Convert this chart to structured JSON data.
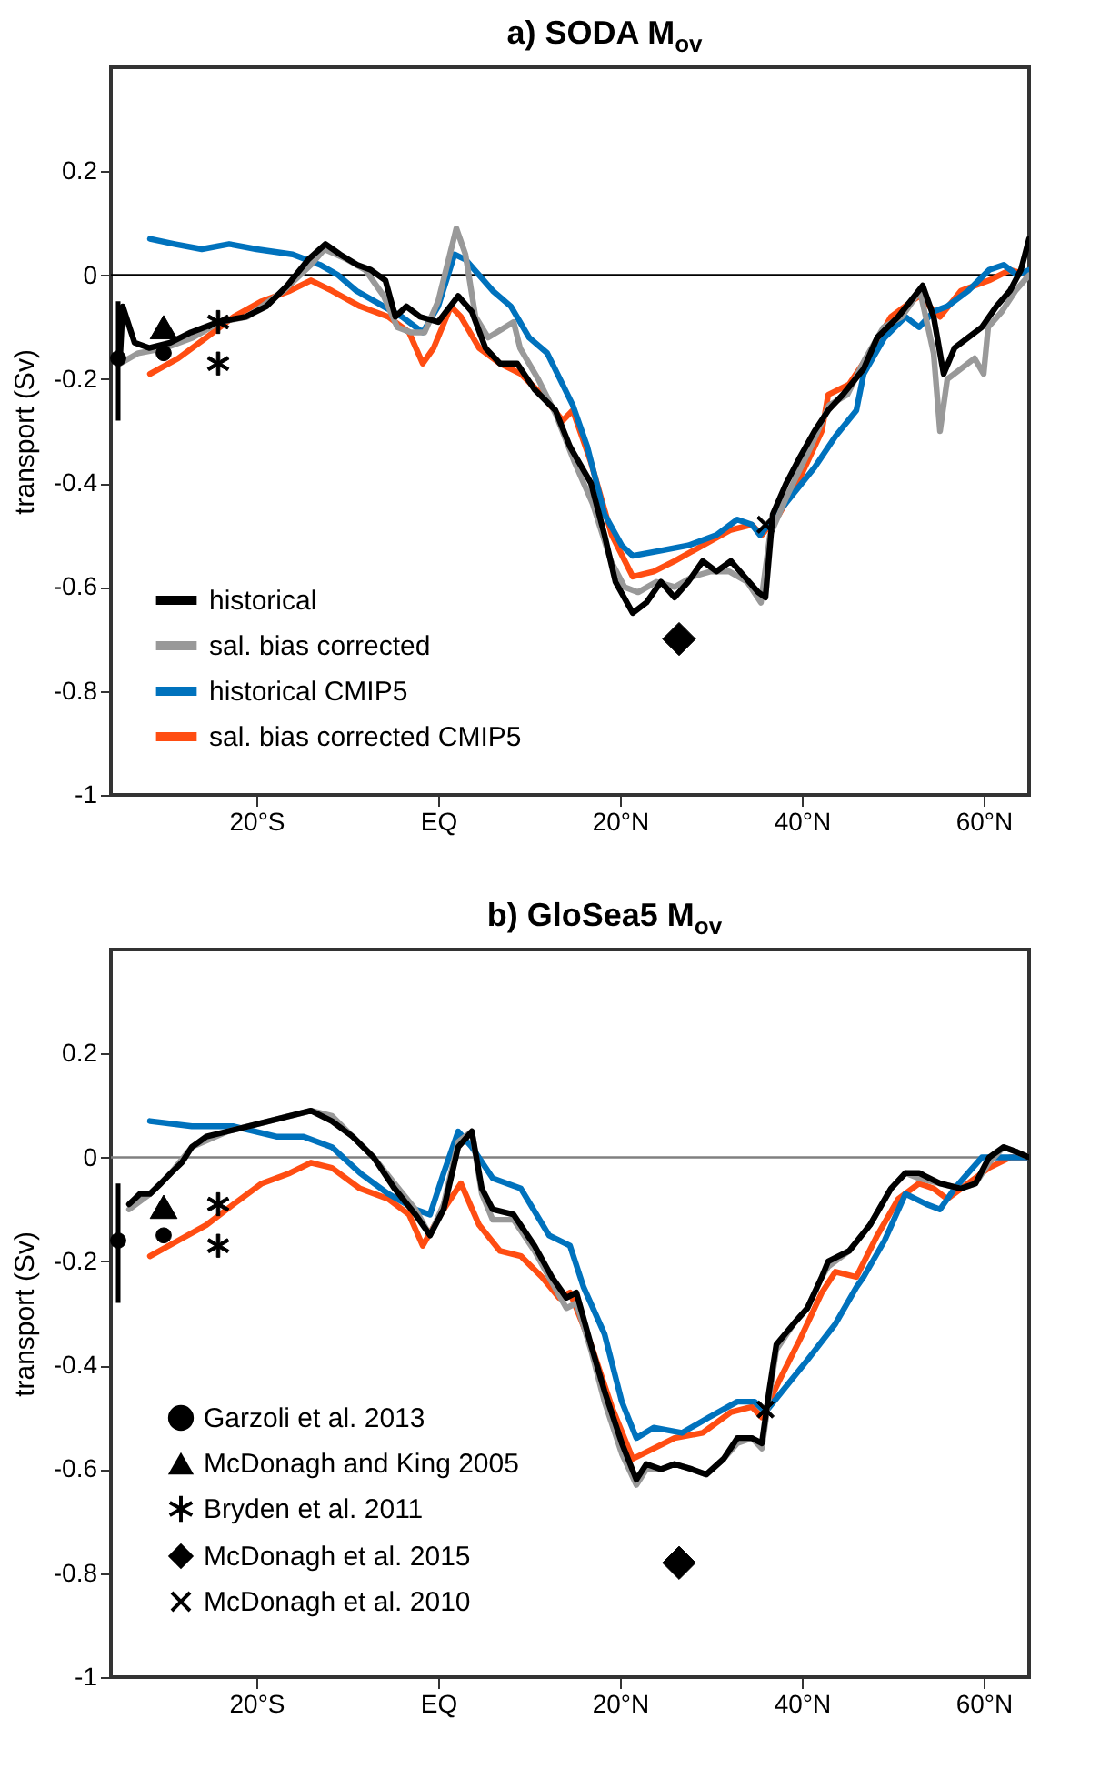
{
  "chart_data": [
    {
      "type": "line",
      "title": "a) SODA M$_{ov}$",
      "ylabel": "transport (Sv)",
      "xlim": [
        -36,
        65
      ],
      "xticks": [
        {
          "value": -20,
          "label": "20°S"
        },
        {
          "value": 0,
          "label": "EQ"
        },
        {
          "value": 20,
          "label": "20°N"
        },
        {
          "value": 40,
          "label": "40°N"
        },
        {
          "value": 60,
          "label": "60°N"
        }
      ],
      "ylim": [
        -1,
        0.4
      ],
      "yticks": [
        -1,
        -0.8,
        -0.6,
        -0.4,
        -0.2,
        0,
        0.2
      ],
      "ref_lines": [
        {
          "axis": "y",
          "value": 0,
          "color": "#000000"
        }
      ],
      "legend": "bottom left",
      "series": [
        {
          "name": "historical",
          "color": "#000000",
          "type": "line",
          "x": [
            -35.0,
            -34.7,
            -33.4,
            -31.8,
            -29.5,
            -27.2,
            -24.2,
            -21.2,
            -18.9,
            -16.6,
            -14.3,
            -12.4,
            -10.8,
            -8.9,
            -7.4,
            -5.8,
            -4.7,
            -3.5,
            -2.0,
            0,
            2.2,
            3.7,
            5.2,
            6.8,
            8.7,
            10.6,
            12.9,
            14.5,
            16.8,
            18.3,
            19.5,
            21.4,
            22.9,
            24.5,
            26.0,
            27.5,
            29.1,
            30.6,
            32.2,
            33.7,
            35.2,
            36.0,
            36.8,
            38.3,
            39.8,
            41.4,
            42.9,
            44.5,
            46.8,
            48.3,
            50.6,
            53.3,
            54.5,
            55.6,
            56.8,
            58.3,
            59.8,
            61.4,
            62.9,
            64.1,
            65
          ],
          "values": [
            -0.16,
            -0.06,
            -0.13,
            -0.14,
            -0.13,
            -0.11,
            -0.09,
            -0.08,
            -0.06,
            -0.02,
            0.03,
            0.06,
            0.04,
            0.02,
            0.01,
            -0.01,
            -0.08,
            -0.06,
            -0.08,
            -0.09,
            -0.04,
            -0.07,
            -0.14,
            -0.17,
            -0.17,
            -0.22,
            -0.26,
            -0.33,
            -0.4,
            -0.5,
            -0.59,
            -0.65,
            -0.63,
            -0.59,
            -0.62,
            -0.59,
            -0.55,
            -0.57,
            -0.55,
            -0.58,
            -0.61,
            -0.62,
            -0.46,
            -0.4,
            -0.35,
            -0.3,
            -0.26,
            -0.23,
            -0.18,
            -0.12,
            -0.08,
            -0.02,
            -0.08,
            -0.19,
            -0.14,
            -0.12,
            -0.1,
            -0.06,
            -0.03,
            0.01,
            0.07
          ]
        },
        {
          "name": "sal. bias corrected",
          "color": "#999999",
          "type": "line",
          "x": [
            -35,
            -33,
            -30,
            -27,
            -24,
            -21,
            -17,
            -14,
            -12.5,
            -10,
            -8,
            -6,
            -4.5,
            -3,
            -1.5,
            0,
            2,
            3,
            4.1,
            5.5,
            8.3,
            9,
            11,
            13,
            15,
            17,
            19,
            20.5,
            22,
            24,
            26,
            28,
            30,
            32,
            34,
            35.5,
            36.5,
            38.5,
            41,
            43,
            45,
            47,
            49,
            51,
            53,
            54.5,
            55.2,
            56,
            57.5,
            59,
            60,
            60.5,
            62,
            63.5,
            65
          ],
          "values": [
            -0.17,
            -0.15,
            -0.14,
            -0.12,
            -0.09,
            -0.08,
            -0.03,
            0.02,
            0.05,
            0.03,
            0.01,
            -0.04,
            -0.1,
            -0.11,
            -0.11,
            -0.05,
            0.09,
            0.04,
            -0.08,
            -0.12,
            -0.09,
            -0.14,
            -0.2,
            -0.27,
            -0.36,
            -0.44,
            -0.55,
            -0.6,
            -0.61,
            -0.59,
            -0.6,
            -0.58,
            -0.57,
            -0.57,
            -0.59,
            -0.63,
            -0.5,
            -0.42,
            -0.33,
            -0.25,
            -0.23,
            -0.16,
            -0.1,
            -0.08,
            -0.03,
            -0.15,
            -0.3,
            -0.2,
            -0.18,
            -0.16,
            -0.19,
            -0.1,
            -0.07,
            -0.03,
            0.0
          ]
        },
        {
          "name": "historical CMIP5",
          "color": "#0072bd",
          "type": "line",
          "x": [
            -31.7,
            -29,
            -26,
            -23,
            -20,
            -16,
            -13,
            -11,
            -9,
            -6,
            -4,
            -1.7,
            0,
            1.8,
            3,
            6,
            8,
            10,
            12,
            14.8,
            16.4,
            18.3,
            20.2,
            21.4,
            24.5,
            27.5,
            30.6,
            32.9,
            34.5,
            35.4,
            36.8,
            39.1,
            41.4,
            43.7,
            46,
            46.8,
            49.1,
            51.4,
            52.9,
            54.5,
            56,
            58.3,
            60.6,
            62.2,
            63.7,
            65
          ],
          "values": [
            0.07,
            0.06,
            0.05,
            0.06,
            0.05,
            0.04,
            0.02,
            0.0,
            -0.03,
            -0.06,
            -0.08,
            -0.11,
            -0.06,
            0.04,
            0.03,
            -0.03,
            -0.06,
            -0.12,
            -0.15,
            -0.25,
            -0.33,
            -0.46,
            -0.52,
            -0.54,
            -0.53,
            -0.52,
            -0.5,
            -0.47,
            -0.48,
            -0.5,
            -0.47,
            -0.42,
            -0.37,
            -0.31,
            -0.26,
            -0.19,
            -0.12,
            -0.08,
            -0.1,
            -0.07,
            -0.06,
            -0.03,
            0.01,
            0.02,
            0.0,
            0.01
          ]
        },
        {
          "name": "sal. bias corrected CMIP5",
          "color": "#ff4d12",
          "type": "line",
          "x": [
            -31.7,
            -28.6,
            -25.5,
            -22.5,
            -19.4,
            -16.3,
            -14,
            -11.7,
            -8.6,
            -5.5,
            -3.2,
            -1.7,
            -0.5,
            1.4,
            2.5,
            4.5,
            6.8,
            9.1,
            11.4,
            13.7,
            14.8,
            16.8,
            19.1,
            21.4,
            23.7,
            26,
            29.1,
            32.2,
            34.5,
            35.6,
            37.5,
            39.8,
            42.2,
            42.9,
            45.2,
            47.5,
            49.8,
            52.9,
            55.2,
            57.5,
            60.6,
            62.9,
            65
          ],
          "values": [
            -0.19,
            -0.16,
            -0.12,
            -0.08,
            -0.05,
            -0.03,
            -0.01,
            -0.03,
            -0.06,
            -0.08,
            -0.11,
            -0.17,
            -0.14,
            -0.06,
            -0.08,
            -0.14,
            -0.17,
            -0.19,
            -0.23,
            -0.28,
            -0.26,
            -0.36,
            -0.5,
            -0.58,
            -0.57,
            -0.55,
            -0.52,
            -0.49,
            -0.48,
            -0.5,
            -0.46,
            -0.39,
            -0.3,
            -0.23,
            -0.21,
            -0.15,
            -0.08,
            -0.04,
            -0.08,
            -0.03,
            -0.01,
            0.01,
            0.0
          ]
        },
        {
          "color": "#000000",
          "type": "scatter",
          "marker": "circle",
          "x": [
            -35.2,
            -30.2
          ],
          "values": [
            -0.16,
            -0.15
          ],
          "errors": [
            [
              -0.28,
              -0.05
            ],
            null
          ]
        },
        {
          "color": "#000000",
          "type": "scatter",
          "marker": "triangle",
          "x": [
            -30.2
          ],
          "values": [
            -0.1
          ]
        },
        {
          "color": "#000000",
          "type": "scatter",
          "marker": "star",
          "x": [
            -24.2,
            -24.2
          ],
          "values": [
            -0.09,
            -0.17
          ]
        },
        {
          "color": "#000000",
          "type": "scatter",
          "marker": "diamond",
          "x": [
            26.5
          ],
          "values": [
            -0.7
          ]
        },
        {
          "color": "#000000",
          "type": "scatter",
          "marker": "cross",
          "x": [
            36
          ],
          "values": [
            -0.48
          ]
        }
      ]
    },
    {
      "type": "line",
      "title": "b) GloSea5 M$_{ov}$",
      "ylabel": "transport (Sv)",
      "xlim": [
        -36,
        65
      ],
      "xticks": [
        {
          "value": -20,
          "label": "20°S"
        },
        {
          "value": 0,
          "label": "EQ"
        },
        {
          "value": 20,
          "label": "20°N"
        },
        {
          "value": 40,
          "label": "40°N"
        },
        {
          "value": 60,
          "label": "60°N"
        }
      ],
      "ylim": [
        -1,
        0.4
      ],
      "yticks": [
        -1,
        -0.8,
        -0.6,
        -0.4,
        -0.2,
        0,
        0.2
      ],
      "ref_lines": [
        {
          "axis": "y",
          "value": 0,
          "color": "#808080"
        }
      ],
      "legend": "bottom left",
      "series": [
        {
          "color": "#000000",
          "type": "line",
          "x": [
            -34,
            -32.8,
            -31.7,
            -30.5,
            -29.4,
            -28.2,
            -27.1,
            -25.5,
            -23.2,
            -20.9,
            -18.6,
            -16.3,
            -14,
            -11.7,
            -9.4,
            -7.1,
            -4.8,
            -2.5,
            -0.9,
            0.6,
            2.2,
            3.7,
            4.8,
            6,
            8.3,
            10.6,
            12.5,
            14.1,
            15.2,
            16.8,
            18.3,
            20.2,
            21.8,
            22.9,
            24.5,
            26,
            27.9,
            29.5,
            31.4,
            32.9,
            34.5,
            35.6,
            36.4,
            37.2,
            39.1,
            40.6,
            42.2,
            42.9,
            45.2,
            47.5,
            49.8,
            51.4,
            52.9,
            55.2,
            57.5,
            59.1,
            60.6,
            62.2,
            63.7,
            65
          ],
          "values": [
            -0.09,
            -0.07,
            -0.07,
            -0.05,
            -0.03,
            -0.01,
            0.02,
            0.04,
            0.05,
            0.06,
            0.07,
            0.08,
            0.09,
            0.07,
            0.04,
            0.0,
            -0.06,
            -0.11,
            -0.15,
            -0.1,
            0.02,
            0.05,
            -0.06,
            -0.1,
            -0.11,
            -0.17,
            -0.23,
            -0.27,
            -0.26,
            -0.36,
            -0.45,
            -0.55,
            -0.62,
            -0.59,
            -0.6,
            -0.59,
            -0.6,
            -0.61,
            -0.58,
            -0.54,
            -0.54,
            -0.55,
            -0.45,
            -0.36,
            -0.32,
            -0.29,
            -0.23,
            -0.2,
            -0.18,
            -0.13,
            -0.06,
            -0.03,
            -0.03,
            -0.05,
            -0.06,
            -0.05,
            0.0,
            0.02,
            0.01,
            0.0
          ]
        },
        {
          "color": "#999999",
          "type": "line",
          "x": [
            -34,
            -31.7,
            -29.4,
            -27.1,
            -23.2,
            -18.6,
            -14,
            -11.7,
            -9.4,
            -7.1,
            -4.8,
            -2.5,
            -0.9,
            0.6,
            2.2,
            3.7,
            4.8,
            6,
            8.3,
            10.6,
            12.5,
            14.1,
            15.2,
            16.8,
            18.3,
            20.2,
            21.8,
            22.9,
            24.5,
            26,
            27.9,
            29.5,
            31.4,
            32.9,
            34.5,
            35.6,
            36.4,
            37.2,
            39.1,
            40.6,
            42.2,
            42.9,
            45.2,
            47.5,
            49.8,
            51.4,
            52.9,
            55.2,
            57.5,
            59.1,
            60.6,
            62.2,
            63.7,
            65
          ],
          "values": [
            -0.1,
            -0.07,
            -0.03,
            0.02,
            0.05,
            0.07,
            0.09,
            0.08,
            0.04,
            0.0,
            -0.05,
            -0.1,
            -0.15,
            -0.09,
            0.03,
            0.05,
            -0.07,
            -0.12,
            -0.12,
            -0.18,
            -0.24,
            -0.29,
            -0.28,
            -0.37,
            -0.47,
            -0.57,
            -0.63,
            -0.6,
            -0.6,
            -0.59,
            -0.6,
            -0.61,
            -0.58,
            -0.55,
            -0.54,
            -0.56,
            -0.46,
            -0.37,
            -0.32,
            -0.29,
            -0.23,
            -0.21,
            -0.18,
            -0.13,
            -0.06,
            -0.03,
            -0.04,
            -0.05,
            -0.06,
            -0.05,
            -0.01,
            0.02,
            0.01,
            0.0
          ]
        },
        {
          "color": "#0072bd",
          "type": "line",
          "x": [
            -31.7,
            -27.1,
            -22.5,
            -17.8,
            -14.8,
            -11.7,
            -8.6,
            -5.5,
            -2.5,
            -0.9,
            0.6,
            2.2,
            3.7,
            6,
            9.1,
            12.2,
            14.5,
            16,
            18.3,
            20.2,
            21.8,
            23.7,
            26.8,
            29.8,
            32.9,
            34.8,
            36,
            38.3,
            40.6,
            43.7,
            46,
            46.8,
            49.1,
            51.4,
            53.7,
            55.2,
            56.8,
            58.3,
            59.8,
            62.2,
            65
          ],
          "values": [
            0.07,
            0.06,
            0.06,
            0.04,
            0.04,
            0.02,
            -0.03,
            -0.07,
            -0.1,
            -0.11,
            -0.03,
            0.05,
            0.02,
            -0.04,
            -0.06,
            -0.15,
            -0.17,
            -0.25,
            -0.34,
            -0.47,
            -0.54,
            -0.52,
            -0.53,
            -0.5,
            -0.47,
            -0.47,
            -0.49,
            -0.44,
            -0.39,
            -0.32,
            -0.25,
            -0.23,
            -0.16,
            -0.07,
            -0.09,
            -0.1,
            -0.06,
            -0.03,
            0.0,
            0.0,
            0.0
          ]
        },
        {
          "color": "#ff4d12",
          "type": "line",
          "x": [
            -31.7,
            -28.6,
            -25.5,
            -22.5,
            -19.4,
            -16.3,
            -14,
            -11.7,
            -8.6,
            -5.5,
            -3.2,
            -1.7,
            0.6,
            2.5,
            4.5,
            6.8,
            9.1,
            11.4,
            13.3,
            14.5,
            16.8,
            19.1,
            21.4,
            23.7,
            26,
            29.1,
            32.2,
            34.5,
            35.6,
            37.5,
            39.8,
            42.2,
            43.7,
            46,
            48.3,
            50.6,
            52.9,
            54.5,
            56,
            58.3,
            60.6,
            62.9,
            65
          ],
          "values": [
            -0.19,
            -0.16,
            -0.13,
            -0.09,
            -0.05,
            -0.03,
            -0.01,
            -0.02,
            -0.06,
            -0.08,
            -0.11,
            -0.17,
            -0.1,
            -0.05,
            -0.13,
            -0.18,
            -0.19,
            -0.23,
            -0.27,
            -0.26,
            -0.36,
            -0.48,
            -0.58,
            -0.56,
            -0.54,
            -0.53,
            -0.49,
            -0.48,
            -0.5,
            -0.43,
            -0.35,
            -0.26,
            -0.22,
            -0.23,
            -0.15,
            -0.08,
            -0.05,
            -0.06,
            -0.08,
            -0.05,
            -0.02,
            0.0,
            0.0
          ]
        },
        {
          "name": "Garzoli et al. 2013",
          "color": "#000000",
          "type": "scatter",
          "marker": "circle",
          "x": [
            -35.2,
            -30.2
          ],
          "values": [
            -0.16,
            -0.15
          ],
          "errors": [
            [
              -0.28,
              -0.05
            ],
            null
          ]
        },
        {
          "name": "McDonagh and King 2005",
          "color": "#000000",
          "type": "scatter",
          "marker": "triangle",
          "x": [
            -30.2
          ],
          "values": [
            -0.095
          ]
        },
        {
          "name": "Bryden et al. 2011",
          "color": "#000000",
          "type": "scatter",
          "marker": "star",
          "x": [
            -24.2,
            -24.2
          ],
          "values": [
            -0.09,
            -0.17
          ]
        },
        {
          "name": "McDonagh et al. 2015",
          "color": "#000000",
          "type": "scatter",
          "marker": "diamond",
          "x": [
            26.5
          ],
          "values": [
            -0.78
          ]
        },
        {
          "name": "McDonagh et al. 2010",
          "color": "#000000",
          "type": "scatter",
          "marker": "cross",
          "x": [
            36
          ],
          "values": [
            -0.485
          ]
        }
      ]
    }
  ]
}
